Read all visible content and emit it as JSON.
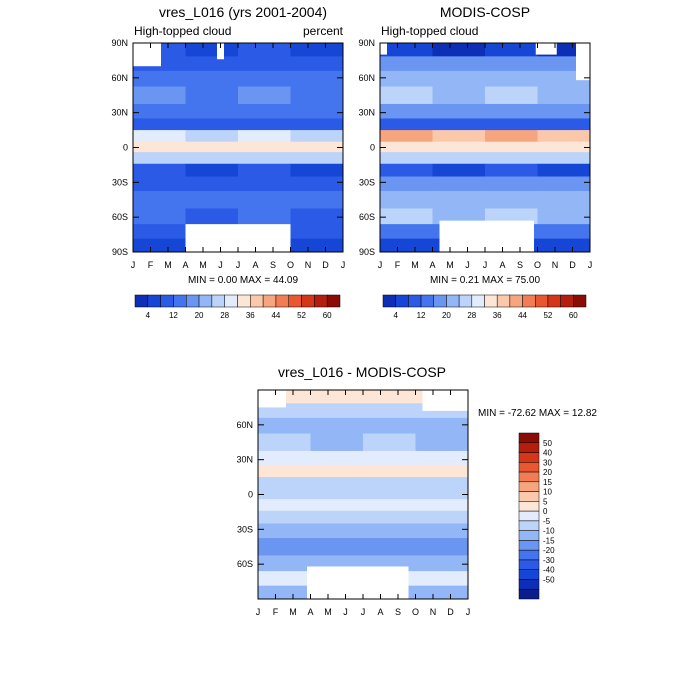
{
  "chart_data": [
    {
      "type": "heatmap",
      "title": "vres_L016 (yrs 2001-2004)",
      "subtitle_left": "High-topped cloud",
      "subtitle_right": "percent",
      "x_ticks": [
        "J",
        "F",
        "M",
        "A",
        "M",
        "J",
        "J",
        "A",
        "S",
        "O",
        "N",
        "D",
        "J"
      ],
      "y_ticks": [
        "90N",
        "60N",
        "30N",
        "0",
        "30S",
        "60S",
        "90S"
      ],
      "ylim": [
        -90,
        90
      ],
      "stats_text": "MIN =   0.00 MAX =  44.09",
      "min": 0.0,
      "max": 44.09,
      "bands": [
        {
          "lat": 85,
          "value": 6
        },
        {
          "lat": 72,
          "value": 10
        },
        {
          "lat": 60,
          "value": 14
        },
        {
          "lat": 45,
          "value": 16
        },
        {
          "lat": 30,
          "value": 12
        },
        {
          "lat": 20,
          "value": 8
        },
        {
          "lat": 10,
          "value": 28
        },
        {
          "lat": 0,
          "value": 32
        },
        {
          "lat": -8,
          "value": 24
        },
        {
          "lat": -20,
          "value": 8
        },
        {
          "lat": -30,
          "value": 10
        },
        {
          "lat": -45,
          "value": 14
        },
        {
          "lat": -60,
          "value": 12
        },
        {
          "lat": -72,
          "value": 10
        },
        {
          "lat": -85,
          "value": 6
        }
      ],
      "colorbar": {
        "labels": [
          "4",
          "12",
          "20",
          "28",
          "36",
          "44",
          "52",
          "60"
        ]
      }
    },
    {
      "type": "heatmap",
      "title": "MODIS-COSP",
      "subtitle_left": "High-topped cloud",
      "subtitle_right": "",
      "x_ticks": [
        "J",
        "F",
        "M",
        "A",
        "M",
        "J",
        "J",
        "A",
        "S",
        "O",
        "N",
        "D",
        "J"
      ],
      "y_ticks": [
        "90N",
        "60N",
        "30N",
        "0",
        "30S",
        "60S",
        "90S"
      ],
      "ylim": [
        -90,
        90
      ],
      "stats_text": "MIN =   0.21 MAX =  75.00",
      "min": 0.21,
      "max": 75.0,
      "bands": [
        {
          "lat": 85,
          "value": 4
        },
        {
          "lat": 72,
          "value": 16
        },
        {
          "lat": 60,
          "value": 20
        },
        {
          "lat": 45,
          "value": 24
        },
        {
          "lat": 30,
          "value": 18
        },
        {
          "lat": 20,
          "value": 10
        },
        {
          "lat": 10,
          "value": 40
        },
        {
          "lat": 0,
          "value": 32
        },
        {
          "lat": -8,
          "value": 26
        },
        {
          "lat": -20,
          "value": 6
        },
        {
          "lat": -30,
          "value": 16
        },
        {
          "lat": -45,
          "value": 22
        },
        {
          "lat": -60,
          "value": 24
        },
        {
          "lat": -72,
          "value": 12
        },
        {
          "lat": -85,
          "value": 4
        }
      ],
      "colorbar": {
        "labels": [
          "4",
          "12",
          "20",
          "28",
          "36",
          "44",
          "52",
          "60"
        ]
      }
    },
    {
      "type": "heatmap",
      "title": "vres_L016 - MODIS-COSP",
      "x_ticks": [
        "J",
        "F",
        "M",
        "A",
        "M",
        "J",
        "J",
        "A",
        "S",
        "O",
        "N",
        "D",
        "J"
      ],
      "y_ticks": [
        "60N",
        "30N",
        "0",
        "30S",
        "60S"
      ],
      "ylim": [
        -90,
        90
      ],
      "stats_text": "MIN = -72.62 MAX =  12.82",
      "min": -72.62,
      "max": 12.82,
      "bands": [
        {
          "lat": 85,
          "value": 7
        },
        {
          "lat": 72,
          "value": -3
        },
        {
          "lat": 60,
          "value": -8
        },
        {
          "lat": 45,
          "value": -6
        },
        {
          "lat": 30,
          "value": 3
        },
        {
          "lat": 20,
          "value": 8
        },
        {
          "lat": 10,
          "value": -3
        },
        {
          "lat": 0,
          "value": -2
        },
        {
          "lat": -8,
          "value": 3
        },
        {
          "lat": -20,
          "value": -2
        },
        {
          "lat": -30,
          "value": -8
        },
        {
          "lat": -45,
          "value": -12
        },
        {
          "lat": -60,
          "value": -7
        },
        {
          "lat": -72,
          "value": 4
        },
        {
          "lat": -85,
          "value": -6
        }
      ],
      "colorbar": {
        "labels": [
          "50",
          "40",
          "30",
          "20",
          "15",
          "10",
          "5",
          "0",
          "-5",
          "-10",
          "-15",
          "-20",
          "-30",
          "-40",
          "-50"
        ]
      }
    }
  ]
}
